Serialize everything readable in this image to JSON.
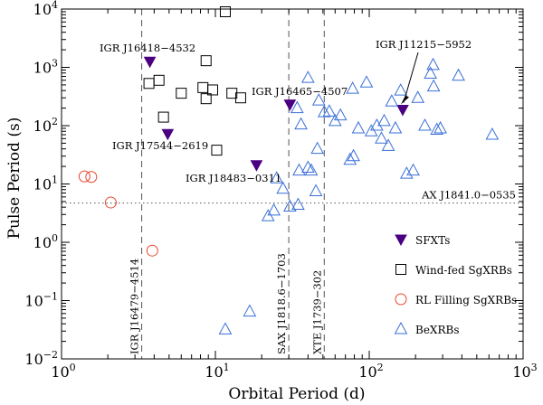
{
  "chart_data": {
    "type": "scatter",
    "xscale": "log",
    "yscale": "log",
    "xlim": [
      1,
      1000
    ],
    "ylim": [
      0.01,
      10000
    ],
    "xlabel": "Orbital Period (d)",
    "ylabel": "Pulse Period (s)",
    "x_ticks": [
      {
        "value": 1,
        "base": "10",
        "exp": "0"
      },
      {
        "value": 10,
        "base": "10",
        "exp": "1"
      },
      {
        "value": 100,
        "base": "10",
        "exp": "2"
      },
      {
        "value": 1000,
        "base": "10",
        "exp": "3"
      }
    ],
    "y_ticks": [
      {
        "value": 0.01,
        "base": "10",
        "exp": "−2"
      },
      {
        "value": 0.1,
        "base": "10",
        "exp": "−1"
      },
      {
        "value": 1,
        "base": "10",
        "exp": "0"
      },
      {
        "value": 10,
        "base": "10",
        "exp": "1"
      },
      {
        "value": 100,
        "base": "10",
        "exp": "2"
      },
      {
        "value": 1000,
        "base": "10",
        "exp": "3"
      },
      {
        "value": 10000,
        "base": "10",
        "exp": "4"
      }
    ],
    "reference_lines": [
      {
        "orientation": "vertical",
        "x": 3.32,
        "label": "IGR J16479−4514"
      },
      {
        "orientation": "vertical",
        "x": 30,
        "label": "SAX J1818.6−1703"
      },
      {
        "orientation": "vertical",
        "x": 51,
        "label": "XTE J1739−302"
      },
      {
        "orientation": "horizontal",
        "y": 4.7,
        "label": "AX J1841.0−0535"
      }
    ],
    "series": [
      {
        "name": "SFXTs",
        "marker": "triangle-down-filled",
        "color": "#4b0082",
        "points": [
          {
            "x": 3.75,
            "y": 1250,
            "label": "IGR J16418−4532"
          },
          {
            "x": 4.9,
            "y": 72,
            "label": "IGR J17544−2619"
          },
          {
            "x": 18.5,
            "y": 21,
            "label": "IGR J18483−0311"
          },
          {
            "x": 30.5,
            "y": 230,
            "label": "IGR J16465−4507"
          },
          {
            "x": 165,
            "y": 187,
            "label": "IGR J11215−5952"
          }
        ]
      },
      {
        "name": "Wind-fed SgXRBs",
        "marker": "square-open",
        "color": "#000000",
        "points": [
          {
            "x": 3.7,
            "y": 530
          },
          {
            "x": 4.3,
            "y": 600
          },
          {
            "x": 4.6,
            "y": 140
          },
          {
            "x": 6.0,
            "y": 360
          },
          {
            "x": 8.3,
            "y": 450
          },
          {
            "x": 8.7,
            "y": 1300
          },
          {
            "x": 8.7,
            "y": 290
          },
          {
            "x": 9.6,
            "y": 410
          },
          {
            "x": 10.2,
            "y": 38
          },
          {
            "x": 11.6,
            "y": 10000
          },
          {
            "x": 12.8,
            "y": 360
          },
          {
            "x": 14.6,
            "y": 300
          }
        ]
      },
      {
        "name": "RL Filling SgXRBs",
        "marker": "circle-open",
        "color": "#e8452c",
        "points": [
          {
            "x": 1.41,
            "y": 13.5
          },
          {
            "x": 1.56,
            "y": 13.2
          },
          {
            "x": 2.09,
            "y": 4.8
          },
          {
            "x": 3.89,
            "y": 0.72
          }
        ]
      },
      {
        "name": "BeXRBs",
        "marker": "triangle-up-open",
        "color": "#3a6fd8",
        "points": [
          {
            "x": 11.6,
            "y": 0.032
          },
          {
            "x": 16.7,
            "y": 0.065
          },
          {
            "x": 22,
            "y": 2.8
          },
          {
            "x": 24,
            "y": 3.5
          },
          {
            "x": 25,
            "y": 12.5
          },
          {
            "x": 27.5,
            "y": 8.3
          },
          {
            "x": 30.5,
            "y": 4.1
          },
          {
            "x": 34.5,
            "y": 4.4
          },
          {
            "x": 35,
            "y": 17
          },
          {
            "x": 40,
            "y": 19
          },
          {
            "x": 42,
            "y": 17
          },
          {
            "x": 45,
            "y": 7.5
          },
          {
            "x": 46,
            "y": 40
          },
          {
            "x": 34,
            "y": 200
          },
          {
            "x": 36,
            "y": 105
          },
          {
            "x": 40,
            "y": 660
          },
          {
            "x": 47,
            "y": 270
          },
          {
            "x": 51,
            "y": 170
          },
          {
            "x": 55,
            "y": 175
          },
          {
            "x": 60,
            "y": 120
          },
          {
            "x": 65,
            "y": 150
          },
          {
            "x": 75,
            "y": 26
          },
          {
            "x": 79,
            "y": 30
          },
          {
            "x": 78,
            "y": 430
          },
          {
            "x": 85,
            "y": 90
          },
          {
            "x": 96,
            "y": 550
          },
          {
            "x": 103,
            "y": 80
          },
          {
            "x": 112,
            "y": 100
          },
          {
            "x": 120,
            "y": 60
          },
          {
            "x": 125,
            "y": 120
          },
          {
            "x": 133,
            "y": 45
          },
          {
            "x": 140,
            "y": 260
          },
          {
            "x": 148,
            "y": 90
          },
          {
            "x": 160,
            "y": 400
          },
          {
            "x": 175,
            "y": 15
          },
          {
            "x": 193,
            "y": 17
          },
          {
            "x": 207,
            "y": 300
          },
          {
            "x": 230,
            "y": 100
          },
          {
            "x": 250,
            "y": 780
          },
          {
            "x": 260,
            "y": 1100
          },
          {
            "x": 262,
            "y": 470
          },
          {
            "x": 275,
            "y": 85
          },
          {
            "x": 290,
            "y": 90
          },
          {
            "x": 380,
            "y": 720
          },
          {
            "x": 630,
            "y": 70
          }
        ]
      }
    ],
    "legend": {
      "placement": "lower-right",
      "entries": [
        {
          "label": "SFXTs",
          "marker": "triangle-down-filled"
        },
        {
          "label": "Wind-fed SgXRBs",
          "marker": "square-open"
        },
        {
          "label": "RL Filling SgXRBs",
          "marker": "circle-open"
        },
        {
          "label": "BeXRBs",
          "marker": "triangle-up-open"
        }
      ]
    }
  }
}
